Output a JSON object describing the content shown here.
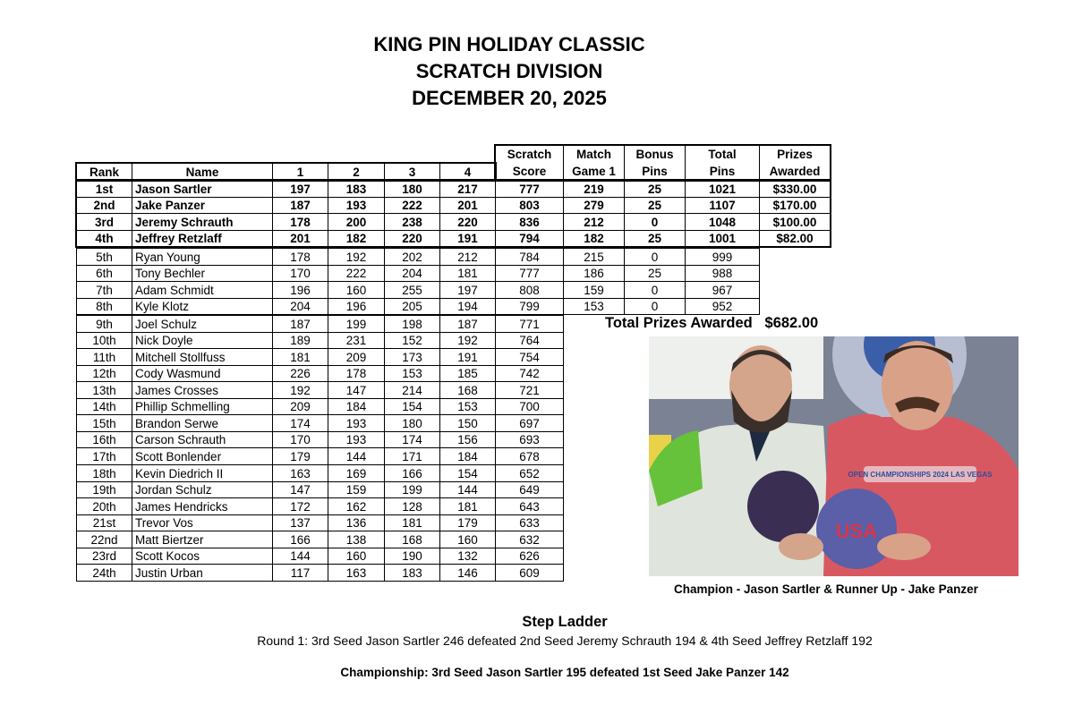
{
  "titles": [
    "KING PIN HOLIDAY CLASSIC",
    "SCRATCH DIVISION",
    "DECEMBER 20, 2025"
  ],
  "table": {
    "headers": [
      [
        "",
        "Rank"
      ],
      [
        "",
        "Name"
      ],
      [
        "",
        "1"
      ],
      [
        "",
        "2"
      ],
      [
        "",
        "3"
      ],
      [
        "",
        "4"
      ],
      [
        "Scratch",
        "Score"
      ],
      [
        "Match",
        "Game 1"
      ],
      [
        "Bonus",
        "Pins"
      ],
      [
        "Total",
        "Pins"
      ],
      [
        "Prizes",
        "Awarded"
      ]
    ],
    "finalists": [
      [
        "1st",
        "Jason Sartler",
        "197",
        "183",
        "180",
        "217",
        "777",
        "219",
        "25",
        "1021",
        "$330.00"
      ],
      [
        "2nd",
        "Jake Panzer",
        "187",
        "193",
        "222",
        "201",
        "803",
        "279",
        "25",
        "1107",
        "$170.00"
      ],
      [
        "3rd",
        "Jeremy Schrauth",
        "178",
        "200",
        "238",
        "220",
        "836",
        "212",
        "0",
        "1048",
        "$100.00"
      ],
      [
        "4th",
        "Jeffrey Retzlaff",
        "201",
        "182",
        "220",
        "191",
        "794",
        "182",
        "25",
        "1001",
        "$82.00"
      ]
    ],
    "match_play": [
      [
        "5th",
        "Ryan Young",
        "178",
        "192",
        "202",
        "212",
        "784",
        "215",
        "0",
        "999"
      ],
      [
        "6th",
        "Tony Bechler",
        "170",
        "222",
        "204",
        "181",
        "777",
        "186",
        "25",
        "988"
      ],
      [
        "7th",
        "Adam Schmidt",
        "196",
        "160",
        "255",
        "197",
        "808",
        "159",
        "0",
        "967"
      ],
      [
        "8th",
        "Kyle Klotz",
        "204",
        "196",
        "205",
        "194",
        "799",
        "153",
        "0",
        "952"
      ]
    ],
    "others": [
      [
        "9th",
        "Joel Schulz",
        "187",
        "199",
        "198",
        "187",
        "771"
      ],
      [
        "10th",
        "Nick Doyle",
        "189",
        "231",
        "152",
        "192",
        "764"
      ],
      [
        "11th",
        "Mitchell Stollfuss",
        "181",
        "209",
        "173",
        "191",
        "754"
      ],
      [
        "12th",
        "Cody Wasmund",
        "226",
        "178",
        "153",
        "185",
        "742"
      ],
      [
        "13th",
        "James Crosses",
        "192",
        "147",
        "214",
        "168",
        "721"
      ],
      [
        "14th",
        "Phillip Schmelling",
        "209",
        "184",
        "154",
        "153",
        "700"
      ],
      [
        "15th",
        "Brandon Serwe",
        "174",
        "193",
        "180",
        "150",
        "697"
      ],
      [
        "16th",
        "Carson Schrauth",
        "170",
        "193",
        "174",
        "156",
        "693"
      ],
      [
        "17th",
        "Scott Bonlender",
        "179",
        "144",
        "171",
        "184",
        "678"
      ],
      [
        "18th",
        "Kevin Diedrich II",
        "163",
        "169",
        "166",
        "154",
        "652"
      ],
      [
        "19th",
        "Jordan Schulz",
        "147",
        "159",
        "199",
        "144",
        "649"
      ],
      [
        "20th",
        "James Hendricks",
        "172",
        "162",
        "128",
        "181",
        "643"
      ],
      [
        "21st",
        "Trevor Vos",
        "137",
        "136",
        "181",
        "179",
        "633"
      ],
      [
        "22nd",
        "Matt Biertzer",
        "166",
        "138",
        "168",
        "160",
        "632"
      ],
      [
        "23rd",
        "Scott Kocos",
        "144",
        "160",
        "190",
        "132",
        "626"
      ],
      [
        "24th",
        "Justin Urban",
        "117",
        "163",
        "183",
        "146",
        "609"
      ]
    ]
  },
  "total_prizes": {
    "label": "Total Prizes Awarded",
    "value": "$682.00"
  },
  "photo": {
    "caption": "Champion - Jason Sartler & Runner Up - Jake Panzer",
    "shirt_text": "OPEN CHAMPIONSHIPS 2024 LAS VEGAS",
    "ball_text": "USA"
  },
  "step_ladder": {
    "heading": "Step Ladder",
    "round1": "Round 1: 3rd Seed Jason Sartler 246 defeated 2nd Seed Jeremy Schrauth 194 & 4th Seed Jeffrey Retzlaff 192",
    "championship": "Championship: 3rd Seed Jason Sartler 195 defeated 1st Seed Jake Panzer 142"
  }
}
